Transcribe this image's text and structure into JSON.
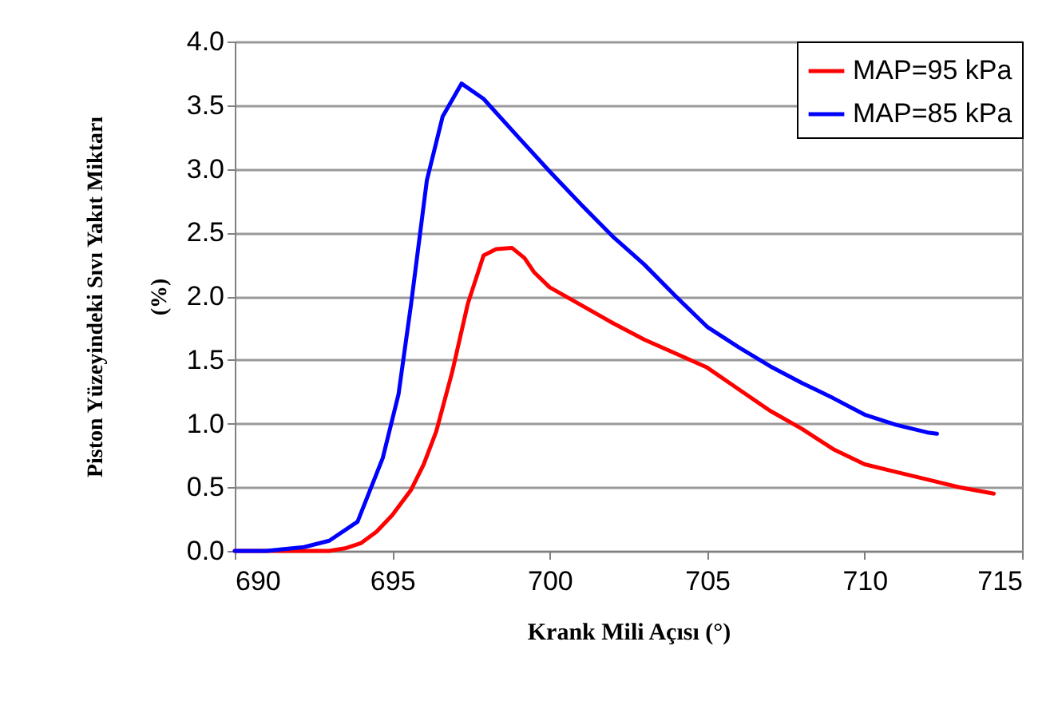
{
  "chart_data": {
    "type": "line",
    "xlabel": "Krank Mili Açısı (°)",
    "ylabel": "Piston Yüzeyindeki Sıvı Yakıt Miktarı\n(%)",
    "xlim": [
      690,
      715
    ],
    "xticks": [
      690,
      695,
      700,
      705,
      710,
      715
    ],
    "ylim": [
      0,
      4
    ],
    "yticks": [
      {
        "value": 0,
        "label": "0.0"
      },
      0.5,
      {
        "value": 1,
        "label": "1.0"
      },
      1.5,
      {
        "value": 2,
        "label": "2.0"
      },
      2.5,
      {
        "value": 3,
        "label": "3.0"
      },
      3.5,
      {
        "value": 4,
        "label": "4.0"
      }
    ],
    "grid": "y",
    "legend": "top right",
    "marker": "none",
    "line_style": "solid",
    "series": [
      {
        "name": "MAP=95 kPa",
        "color": "#ff0000",
        "x": [
          690,
          692,
          693,
          693.5,
          694,
          694.5,
          695,
          695.6,
          696,
          696.4,
          696.9,
          697.4,
          697.9,
          698.3,
          698.8,
          699.2,
          699.5,
          700,
          701,
          702,
          703,
          704,
          705,
          706,
          707,
          708,
          709,
          710,
          711,
          712,
          713,
          714.1
        ],
        "values": [
          0,
          0,
          0,
          0.02,
          0.06,
          0.15,
          0.28,
          0.48,
          0.68,
          0.94,
          1.4,
          1.94,
          2.32,
          2.37,
          2.38,
          2.3,
          2.19,
          2.07,
          1.93,
          1.79,
          1.66,
          1.55,
          1.44,
          1.27,
          1.1,
          0.96,
          0.8,
          0.68,
          0.62,
          0.56,
          0.5,
          0.45
        ]
      },
      {
        "name": "MAP=85 kPa",
        "color": "#0000ff",
        "x": [
          690,
          691,
          692.2,
          693,
          693.9,
          694.7,
          695.2,
          695.6,
          696.1,
          696.6,
          697.2,
          697.9,
          699,
          700,
          701,
          702,
          703,
          704,
          705,
          706,
          707,
          708,
          709,
          710,
          711,
          712,
          712.3
        ],
        "values": [
          0,
          0,
          0.03,
          0.08,
          0.23,
          0.73,
          1.23,
          1.94,
          2.91,
          3.41,
          3.67,
          3.55,
          3.25,
          2.98,
          2.72,
          2.47,
          2.25,
          2.0,
          1.76,
          1.6,
          1.45,
          1.32,
          1.2,
          1.07,
          0.99,
          0.93,
          0.92
        ]
      }
    ]
  }
}
